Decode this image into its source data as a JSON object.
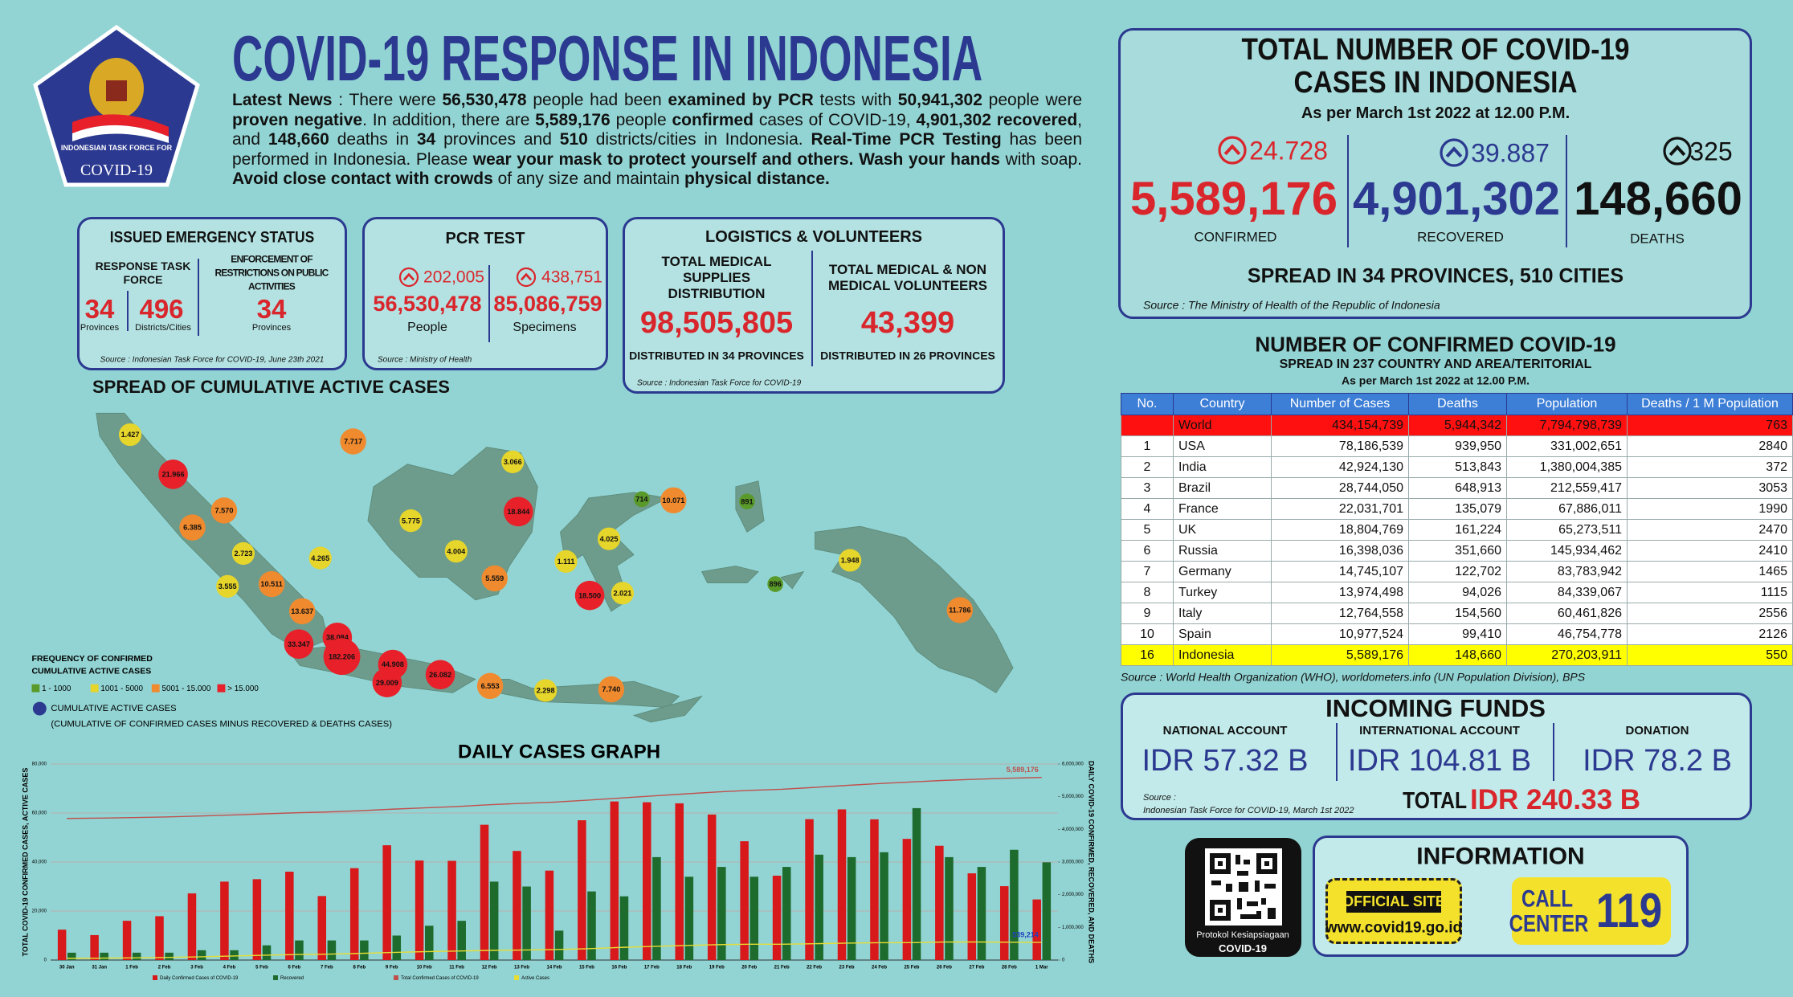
{
  "header": {
    "badge_line1": "INDONESIAN TASK FORCE FOR",
    "badge_line2": "COVID-19",
    "title": "COVID-19 RESPONSE IN INDONESIA"
  },
  "news": [
    {
      "text": "Latest News",
      "bold": true
    },
    {
      "text": " : There were ",
      "bold": false
    },
    {
      "text": "56,530,478",
      "bold": true
    },
    {
      "text": " people had been ",
      "bold": false
    },
    {
      "text": "examined by PCR",
      "bold": true
    },
    {
      "text": " tests with ",
      "bold": false
    },
    {
      "text": "50,941,302",
      "bold": true
    },
    {
      "text": " people were ",
      "bold": false
    },
    {
      "text": "proven negative",
      "bold": true
    },
    {
      "text": ". In addition, there are ",
      "bold": false
    },
    {
      "text": "5,589,176",
      "bold": true
    },
    {
      "text": " people ",
      "bold": false
    },
    {
      "text": "confirmed",
      "bold": true
    },
    {
      "text": " cases of COVID-19, ",
      "bold": false
    },
    {
      "text": "4,901,302 recovered",
      "bold": true
    },
    {
      "text": ", and ",
      "bold": false
    },
    {
      "text": "148,660",
      "bold": true
    },
    {
      "text": " deaths in ",
      "bold": false
    },
    {
      "text": "34",
      "bold": true
    },
    {
      "text": " provinces and ",
      "bold": false
    },
    {
      "text": "510",
      "bold": true
    },
    {
      "text": " districts/cities in Indonesia. ",
      "bold": false
    },
    {
      "text": "Real-Time PCR Testing",
      "bold": true
    },
    {
      "text": " has been performed in Indonesia. Please ",
      "bold": false
    },
    {
      "text": "wear your mask to protect yourself and others. Wash your hands",
      "bold": true
    },
    {
      "text": " with soap. ",
      "bold": false
    },
    {
      "text": "Avoid close contact with crowds",
      "bold": true
    },
    {
      "text": " of any size and maintain ",
      "bold": false
    },
    {
      "text": "physical distance.",
      "bold": true
    }
  ],
  "emergency": {
    "title": "ISSUED EMERGENCY STATUS",
    "col1_head": "RESPONSE TASK FORCE",
    "col2_head": "ENFORCEMENT OF RESTRICTIONS ON PUBLIC ACTIVITIES",
    "provinces": 34,
    "provinces_label": "Provinces",
    "districts": 496,
    "districts_label": "Districts/Cities",
    "enforcement_provinces": 34,
    "enforcement_label": "Provinces",
    "source": "Source : Indonesian Task Force for COVID-19, June 23th 2021"
  },
  "pcr": {
    "title": "PCR TEST",
    "people_increase": "202,005",
    "specimens_increase": "438,751",
    "people": "56,530,478",
    "people_label": "People",
    "specimens": "85,086,759",
    "specimens_label": "Specimens",
    "source": "Source : Ministry of Health"
  },
  "logistics": {
    "title": "LOGISTICS & VOLUNTEERS",
    "supplies_head": "TOTAL MEDICAL SUPPLIES DISTRIBUTION",
    "supplies": "98,505,805",
    "supplies_note": "DISTRIBUTED IN 34 PROVINCES",
    "volunteers_head": "TOTAL MEDICAL & NON MEDICAL VOLUNTEERS",
    "volunteers": "43,399",
    "volunteers_note": "DISTRIBUTED IN 26 PROVINCES",
    "source": "Source : Indonesian Task Force for COVID-19"
  },
  "map": {
    "title": "SPREAD OF CUMULATIVE ACTIVE CASES",
    "legend_title_1": "FREQUENCY OF CONFIRMED",
    "legend_title_2": "CUMULATIVE ACTIVE CASES",
    "levels": [
      {
        "label": "1 - 1000",
        "color": "#5a9a2a"
      },
      {
        "label": "1001 - 5000",
        "color": "#e6d52b"
      },
      {
        "label": "5001 - 15.000",
        "color": "#f08a2e"
      },
      {
        "label": "> 15.000",
        "color": "#e8202a"
      }
    ],
    "active_label": "CUMULATIVE ACTIVE CASES",
    "active_note": "(CUMULATIVE OF CONFIRMED CASES MINUS RECOVERED & DEATHS CASES)",
    "bubbles": [
      {
        "label": "1.427",
        "level": 1
      },
      {
        "label": "21.966",
        "level": 3
      },
      {
        "label": "7.717",
        "level": 2
      },
      {
        "label": "3.066",
        "level": 1
      },
      {
        "label": "7.570",
        "level": 2
      },
      {
        "label": "6.385",
        "level": 2
      },
      {
        "label": "18.844",
        "level": 3
      },
      {
        "label": "5.775",
        "level": 1
      },
      {
        "label": "714",
        "level": 0
      },
      {
        "label": "10.071",
        "level": 2
      },
      {
        "label": "891",
        "level": 0
      },
      {
        "label": "4.025",
        "level": 1
      },
      {
        "label": "2.723",
        "level": 1
      },
      {
        "label": "4.004",
        "level": 1
      },
      {
        "label": "4.265",
        "level": 1
      },
      {
        "label": "1.111",
        "level": 1
      },
      {
        "label": "1.948",
        "level": 1
      },
      {
        "label": "10.511",
        "level": 2
      },
      {
        "label": "5.559",
        "level": 2
      },
      {
        "label": "3.555",
        "level": 1
      },
      {
        "label": "896",
        "level": 0
      },
      {
        "label": "18.500",
        "level": 3
      },
      {
        "label": "2.021",
        "level": 1
      },
      {
        "label": "13.637",
        "level": 2
      },
      {
        "label": "11.786",
        "level": 2
      },
      {
        "label": "38.084",
        "level": 3
      },
      {
        "label": "33.347",
        "level": 3
      },
      {
        "label": "182.206",
        "level": 3
      },
      {
        "label": "44.908",
        "level": 3
      },
      {
        "label": "26.082",
        "level": 3
      },
      {
        "label": "29.009",
        "level": 3
      },
      {
        "label": "6.553",
        "level": 2
      },
      {
        "label": "2.298",
        "level": 1
      },
      {
        "label": "7.740",
        "level": 2
      }
    ]
  },
  "chart_data": {
    "type": "bar",
    "title": "DAILY CASES GRAPH",
    "y_label": "TOTAL COVID-19 CONFIRMED CASES, ACTIVE CASES",
    "y2_label": "DAILY COVID-19 CONFIRMED, RECOVERED, AND DEATHS",
    "categories": [
      "30 Jan",
      "31 Jan",
      "1 Feb",
      "2 Feb",
      "3 Feb",
      "4 Feb",
      "5 Feb",
      "6 Feb",
      "7 Feb",
      "8 Feb",
      "9 Feb",
      "10 Feb",
      "11 Feb",
      "12 Feb",
      "13 Feb",
      "14 Feb",
      "15 Feb",
      "16 Feb",
      "17 Feb",
      "18 Feb",
      "19 Feb",
      "20 Feb",
      "21 Feb",
      "22 Feb",
      "23 Feb",
      "24 Feb",
      "25 Feb",
      "26 Feb",
      "27 Feb",
      "28 Feb",
      "1 Mar"
    ],
    "ylim": [
      0,
      80000
    ],
    "yticks": [
      0,
      {
        "value": 20000,
        "label": "20,000"
      },
      {
        "value": 40000,
        "label": "40,000"
      },
      {
        "value": 60000,
        "label": "60,000"
      },
      {
        "value": 80000,
        "label": "80,000"
      }
    ],
    "y2lim": [
      0,
      6000000
    ],
    "y2ticks": [
      0,
      {
        "value": 1000000,
        "label": "1,000,000"
      },
      {
        "value": 2000000,
        "label": "2,000,000"
      },
      {
        "value": 3000000,
        "label": "3,000,000"
      },
      {
        "value": 4000000,
        "label": "4,000,000"
      },
      {
        "value": 5000000,
        "label": "5,000,000"
      },
      {
        "value": 6000000,
        "label": "6,000,000"
      }
    ],
    "grid": true,
    "series": [
      {
        "name": "Daily Confirmed Cases of COVID-19",
        "color": "#d7191c",
        "values": [
          12400,
          10185,
          16021,
          17895,
          27197,
          32000,
          33000,
          36057,
          26121,
          37492,
          46843,
          40618,
          40489,
          55209,
          44526,
          36501,
          57049,
          64718,
          64394,
          63956,
          59384,
          48484,
          34418,
          57491,
          61488,
          57426,
          49447,
          46643,
          35384,
          30148,
          24728
        ]
      },
      {
        "name": "Recovered",
        "color": "#1e6b2e",
        "values": [
          3000,
          3000,
          3000,
          3000,
          4000,
          4000,
          6000,
          8000,
          8000,
          8000,
          10000,
          14000,
          16000,
          32000,
          30000,
          12000,
          28000,
          26000,
          42000,
          34000,
          38000,
          34000,
          38000,
          43000,
          42000,
          44000,
          62000,
          42000,
          38000,
          45000,
          39887
        ]
      },
      {
        "name": "Total Confirmed Cases of COVID-19",
        "color": "#c0504d",
        "axis": "y2",
        "values": [
          4333864,
          4344049,
          4360070,
          4377965,
          4405162,
          4437162,
          4470162,
          4506219,
          4532340,
          4569832,
          4616675,
          4657293,
          4697782,
          4752991,
          4797517,
          4834018,
          4891067,
          4955785,
          5020179,
          5084135,
          5143519,
          5192003,
          5226421,
          5283912,
          5345400,
          5402826,
          5452273,
          5498916,
          5534300,
          5564448,
          5589176
        ],
        "value_labels": [
          null,
          null,
          null,
          null,
          null,
          null,
          null,
          null,
          null,
          null,
          null,
          null,
          null,
          null,
          null,
          null,
          null,
          null,
          null,
          null,
          null,
          null,
          null,
          null,
          null,
          null,
          null,
          null,
          null,
          null,
          "5,589,176"
        ]
      },
      {
        "name": "Active Cases",
        "color": "#e6dd35",
        "axis": "y2",
        "values": [
          52000,
          58000,
          67000,
          78000,
          98000,
          122000,
          145000,
          168000,
          180000,
          203000,
          233000,
          256000,
          275000,
          295000,
          305000,
          320000,
          347000,
          384000,
          416000,
          444000,
          470000,
          485000,
          484000,
          500000,
          518000,
          530000,
          533000,
          551000,
          553000,
          545000,
          539214
        ],
        "value_labels": [
          null,
          null,
          null,
          null,
          null,
          null,
          null,
          null,
          null,
          null,
          null,
          null,
          null,
          null,
          null,
          null,
          null,
          null,
          null,
          null,
          null,
          null,
          null,
          null,
          null,
          null,
          null,
          null,
          null,
          null,
          "539,214"
        ]
      }
    ]
  },
  "totals": {
    "title_1": "TOTAL NUMBER OF COVID-19",
    "title_2": "CASES IN INDONESIA",
    "date": "As per March 1st 2022 at 12.00 P.M.",
    "confirmed_increase": "24.728",
    "confirmed": "5,589,176",
    "confirmed_label": "CONFIRMED",
    "recovered_increase": "39.887",
    "recovered": "4,901,302",
    "recovered_label": "RECOVERED",
    "deaths_increase": 325,
    "deaths": "148,660",
    "deaths_label": "DEATHS",
    "spread": "SPREAD IN 34 PROVINCES, 510 CITIES",
    "source": "Source : The Ministry of Health of the Republic of Indonesia"
  },
  "table": {
    "title": "NUMBER OF CONFIRMED COVID-19",
    "subtitle": "SPREAD IN 237 COUNTRY AND AREA/TERITORIAL",
    "date": "As per March 1st 2022 at 12.00 P.M.",
    "headers": [
      "No.",
      "Country",
      "Number of Cases",
      "Deaths",
      "Population",
      "Deaths / 1 M Population"
    ],
    "rows": [
      [
        "",
        "World",
        "434,154,739",
        "5,944,342",
        "7,794,798,739",
        "763"
      ],
      [
        "1",
        "USA",
        "78,186,539",
        "939,950",
        "331,002,651",
        "2840"
      ],
      [
        "2",
        "India",
        "42,924,130",
        "513,843",
        "1,380,004,385",
        "372"
      ],
      [
        "3",
        "Brazil",
        "28,744,050",
        "648,913",
        "212,559,417",
        "3053"
      ],
      [
        "4",
        "France",
        "22,031,701",
        "135,079",
        "67,886,011",
        "1990"
      ],
      [
        "5",
        "UK",
        "18,804,769",
        "161,224",
        "65,273,511",
        "2470"
      ],
      [
        "6",
        "Russia",
        "16,398,036",
        "351,660",
        "145,934,462",
        "2410"
      ],
      [
        "7",
        "Germany",
        "14,745,107",
        "122,702",
        "83,783,942",
        "1465"
      ],
      [
        "8",
        "Turkey",
        "13,974,498",
        "94,026",
        "84,339,067",
        "1115"
      ],
      [
        "9",
        "Italy",
        "12,764,558",
        "154,560",
        "60,461,826",
        "2556"
      ],
      [
        "10",
        "Spain",
        "10,977,524",
        "99,410",
        "46,754,778",
        "2126"
      ],
      [
        "16",
        "Indonesia",
        "5,589,176",
        "148,660",
        "270,203,911",
        "550"
      ]
    ],
    "source": "Source : World Health Organization (WHO), worldometers.info (UN Population Division), BPS"
  },
  "funds": {
    "title": "INCOMING FUNDS",
    "accounts": [
      {
        "label": "NATIONAL ACCOUNT",
        "amount": "IDR 57.32 B"
      },
      {
        "label": "INTERNATIONAL ACCOUNT",
        "amount": "IDR 104.81 B"
      },
      {
        "label": "DONATION",
        "amount": "IDR 78.2 B"
      }
    ],
    "source": "Source :",
    "source_detail": "Indonesian Task Force for COVID-19, March 1st 2022",
    "total_label": "TOTAL",
    "total": "IDR 240.33 B"
  },
  "qr": {
    "caption_1": "Protokol Kesiapsiagaan",
    "caption_2": "COVID-19"
  },
  "info": {
    "title": "INFORMATION",
    "site_label": "OFFICIAL SITE",
    "site": "www.covid19.go.id",
    "call_line_1": "CALL",
    "call_line_2": "CENTER",
    "call_number": "119"
  }
}
